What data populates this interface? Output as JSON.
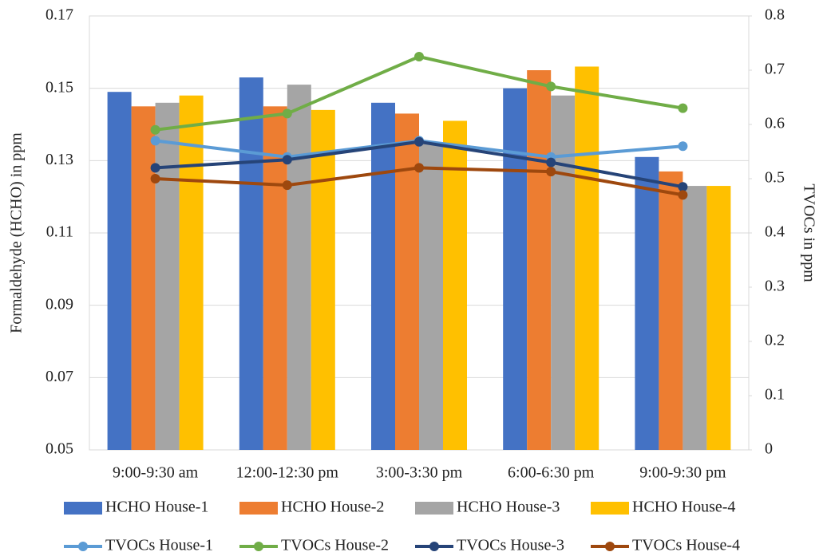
{
  "chart_data": {
    "type": "bar",
    "categories": [
      "9:00-9:30 am",
      "12:00-12:30 pm",
      "3:00-3:30 pm",
      "6:00-6:30 pm",
      "9:00-9:30 pm"
    ],
    "ylabel": "Formaldehyde (HCHO) in ppm",
    "y2label": "TVOCs in ppm",
    "ylim": [
      0.05,
      0.17
    ],
    "yticks": [
      0.05,
      0.07,
      0.09,
      0.11,
      0.13,
      0.15,
      0.17
    ],
    "y2lim": [
      0,
      0.8
    ],
    "y2ticks": [
      0,
      0.1,
      0.2,
      0.3,
      0.4,
      0.5,
      0.6,
      0.7,
      0.8
    ],
    "grid": true,
    "legend": "bottom",
    "series": [
      {
        "name": "HCHO House-1",
        "type": "bar",
        "color": "#4472c4",
        "values": [
          0.149,
          0.153,
          0.146,
          0.15,
          0.131
        ]
      },
      {
        "name": "HCHO House-2",
        "type": "bar",
        "color": "#ed7d31",
        "values": [
          0.145,
          0.145,
          0.143,
          0.155,
          0.127
        ]
      },
      {
        "name": "HCHO House-3",
        "type": "bar",
        "color": "#a5a5a5",
        "values": [
          0.146,
          0.151,
          0.135,
          0.148,
          0.123
        ]
      },
      {
        "name": "HCHO House-4",
        "type": "bar",
        "color": "#ffc000",
        "values": [
          0.148,
          0.144,
          0.141,
          0.156,
          0.123
        ]
      },
      {
        "name": "TVOCs House-1",
        "type": "line",
        "axis": "y2",
        "color": "#5b9bd5",
        "values": [
          0.57,
          0.54,
          0.57,
          0.54,
          0.56
        ]
      },
      {
        "name": "TVOCs House-2",
        "type": "line",
        "axis": "y2",
        "color": "#70ad47",
        "values": [
          0.59,
          0.62,
          0.725,
          0.67,
          0.63
        ]
      },
      {
        "name": "TVOCs House-3",
        "type": "line",
        "axis": "y2",
        "color": "#264478",
        "values": [
          0.52,
          0.535,
          0.568,
          0.53,
          0.485
        ]
      },
      {
        "name": "TVOCs House-4",
        "type": "line",
        "axis": "y2",
        "color": "#9e480e",
        "values": [
          0.5,
          0.488,
          0.52,
          0.513,
          0.47
        ]
      }
    ]
  }
}
